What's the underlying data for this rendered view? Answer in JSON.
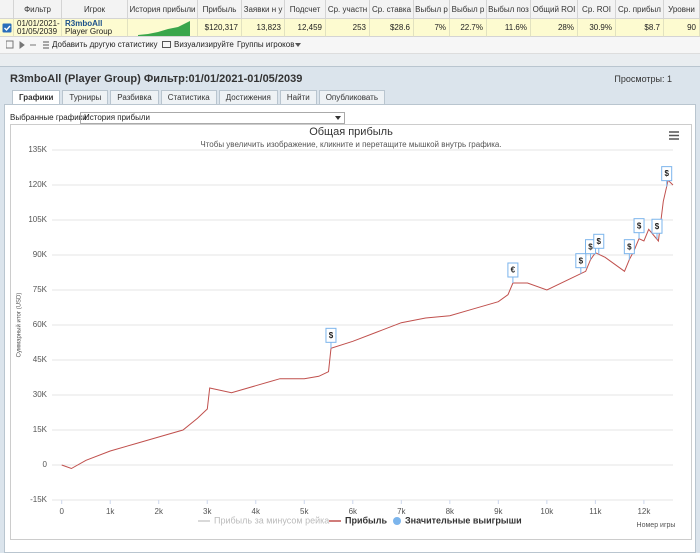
{
  "table": {
    "headers": [
      "Фильтр",
      "Игрок",
      "История прибыли",
      "Прибыль",
      "Заявки н у",
      "Подсчет",
      "Ср. участн",
      "Ср. ставка",
      "Выбыл р",
      "Выбыл р",
      "Выбыл поз",
      "Общий ROI",
      "Ср. ROI",
      "Ср. прибыл",
      "Уровни"
    ],
    "row": {
      "filter": [
        "01/01/2021-",
        "01/05/2039"
      ],
      "player": [
        "R3mboAll",
        "Player Group"
      ],
      "values": [
        "$120,317",
        "13,823",
        "12,459",
        "253",
        "$28.6",
        "7%",
        "22.7%",
        "11.6%",
        "28%",
        "30.9%",
        "$8.7",
        "90"
      ]
    }
  },
  "toolbar": [
    "Добавить другую статистику",
    "Визуализируйте",
    "Группы игроков"
  ],
  "panel": {
    "title": "R3mboAll (Player Group) Фильтр:01/01/2021-01/05/2039",
    "views": "Просмотры: 1",
    "tabs": [
      "Графики",
      "Турниры",
      "Разбивка",
      "Статистика",
      "Достижения",
      "Найти",
      "Опубликовать"
    ],
    "active_tab": 0,
    "selector_label": "Выбранные графики:",
    "selector_value": "История прибыли"
  },
  "chart_data": {
    "type": "line",
    "title": "Общая прибыль",
    "subtitle": "Чтобы увеличить изображение, кликните и перетащите мышкой внутрь графика.",
    "y_label": "Суммарный итог (USD)",
    "x_label": "Номер игры",
    "xlim": [
      -200,
      12600
    ],
    "ylim": [
      -15000,
      135000
    ],
    "grid": true,
    "xticks": [
      0,
      {
        "value": 1000,
        "label": "1k"
      },
      {
        "value": 2000,
        "label": "2k"
      },
      {
        "value": 3000,
        "label": "3k"
      },
      {
        "value": 4000,
        "label": "4k"
      },
      {
        "value": 5000,
        "label": "5k"
      },
      {
        "value": 6000,
        "label": "6k"
      },
      {
        "value": 7000,
        "label": "7k"
      },
      {
        "value": 8000,
        "label": "8k"
      },
      {
        "value": 9000,
        "label": "9k"
      },
      {
        "value": 10000,
        "label": "10k"
      },
      {
        "value": 11000,
        "label": "11k"
      },
      {
        "value": 12000,
        "label": "12k"
      }
    ],
    "yticks": [
      {
        "value": -15000,
        "label": "-15K"
      },
      0,
      {
        "value": 15000,
        "label": "15K"
      },
      {
        "value": 30000,
        "label": "30K"
      },
      {
        "value": 45000,
        "label": "45K"
      },
      {
        "value": 60000,
        "label": "60K"
      },
      {
        "value": 75000,
        "label": "75K"
      },
      {
        "value": 90000,
        "label": "90K"
      },
      {
        "value": 105000,
        "label": "105K"
      },
      {
        "value": 120000,
        "label": "120K"
      },
      {
        "value": 135000,
        "label": "135K"
      }
    ],
    "x": [
      0,
      200,
      500,
      1000,
      1500,
      2000,
      2500,
      2800,
      3000,
      3050,
      3500,
      4000,
      4500,
      5000,
      5300,
      5500,
      5550,
      6000,
      6500,
      7000,
      7500,
      8000,
      8500,
      9000,
      9200,
      9300,
      9600,
      10000,
      10500,
      10800,
      10900,
      11000,
      11200,
      11400,
      11600,
      11700,
      11800,
      11900,
      12000,
      12100,
      12300,
      12400,
      12500,
      12600
    ],
    "series": [
      {
        "name": "Прибыль за минусом рейка",
        "color": "#cccccc",
        "visible": false
      },
      {
        "name": "Прибыль",
        "color": "#c0504d",
        "visible": true,
        "values": [
          0,
          -1500,
          2000,
          6000,
          9000,
          12000,
          15000,
          20000,
          24000,
          33000,
          31000,
          34000,
          37000,
          37000,
          38000,
          40000,
          50000,
          53000,
          57000,
          61000,
          63000,
          64000,
          67000,
          70000,
          73000,
          78000,
          78000,
          75000,
          80000,
          83000,
          88000,
          91000,
          89000,
          86000,
          83000,
          88000,
          92000,
          97000,
          96000,
          101000,
          96000,
          113000,
          122000,
          120000
        ]
      }
    ],
    "flags": {
      "name": "Значительные выигрыши",
      "color": "#7cb5ec",
      "x": [
        5550,
        9300,
        10700,
        10900,
        11070,
        11700,
        11900,
        12270,
        12470
      ],
      "labels": [
        "$",
        "€",
        "$",
        "$",
        "$",
        "$",
        "$",
        "$",
        "$"
      ]
    }
  }
}
